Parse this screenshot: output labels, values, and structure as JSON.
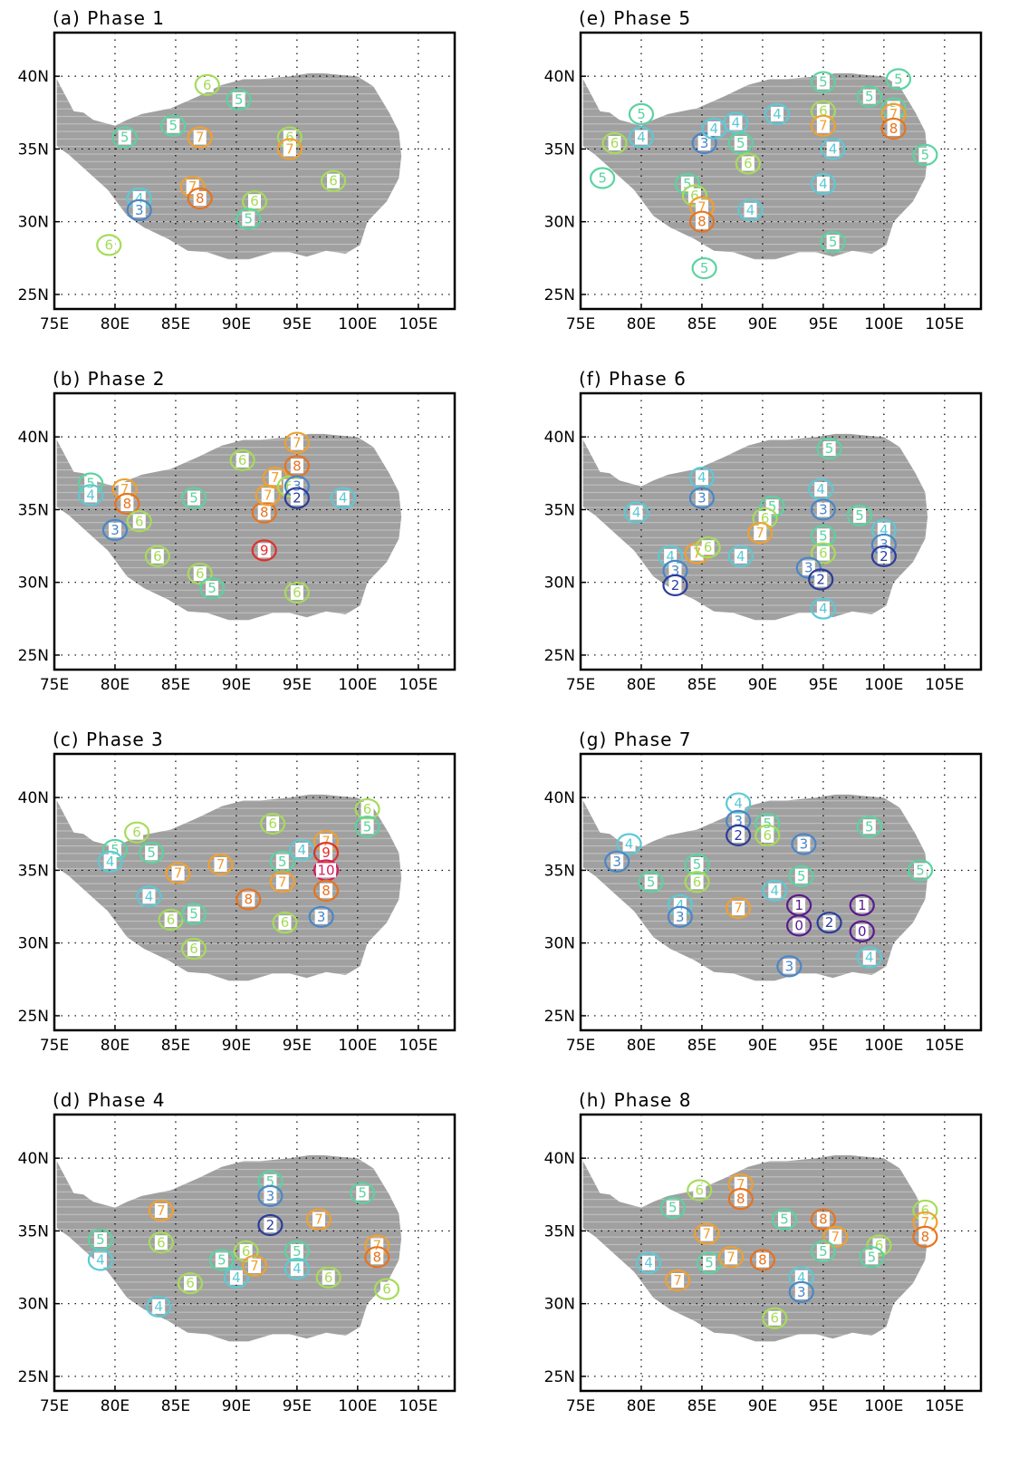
{
  "figure": {
    "x_ticks": [
      "75E",
      "80E",
      "85E",
      "90E",
      "95E",
      "100E",
      "105E"
    ],
    "y_ticks": [
      "25N",
      "30N",
      "35N",
      "40N"
    ],
    "level_colors": {
      "1": "#5b1a8e",
      "2": "#2b3d9b",
      "3": "#4a86c8",
      "4": "#5cc9d6",
      "5": "#5bd3a0",
      "6": "#a6dc5a",
      "7": "#f0a030",
      "8": "#e8731e",
      "9": "#e0302a",
      "10": "#d81b60"
    },
    "panels": [
      {
        "title": "(a) Phase 1",
        "labels": [
          {
            "lon": 80.8,
            "lat": 35.8,
            "level": "5"
          },
          {
            "lon": 84.8,
            "lat": 36.6,
            "level": "5"
          },
          {
            "lon": 87.0,
            "lat": 35.8,
            "level": "7"
          },
          {
            "lon": 87.6,
            "lat": 39.4,
            "level": "6"
          },
          {
            "lon": 90.2,
            "lat": 38.4,
            "level": "5"
          },
          {
            "lon": 94.4,
            "lat": 35.8,
            "level": "6"
          },
          {
            "lon": 94.4,
            "lat": 35.0,
            "level": "7"
          },
          {
            "lon": 82.0,
            "lat": 31.6,
            "level": "4"
          },
          {
            "lon": 82.0,
            "lat": 30.8,
            "level": "3"
          },
          {
            "lon": 86.4,
            "lat": 32.4,
            "level": "7"
          },
          {
            "lon": 87.0,
            "lat": 31.6,
            "level": "8"
          },
          {
            "lon": 91.5,
            "lat": 31.4,
            "level": "6"
          },
          {
            "lon": 91.0,
            "lat": 30.2,
            "level": "5"
          },
          {
            "lon": 98.0,
            "lat": 32.8,
            "level": "6"
          },
          {
            "lon": 79.5,
            "lat": 28.4,
            "level": "6"
          }
        ]
      },
      {
        "title": "(b) Phase 2",
        "labels": [
          {
            "lon": 78.0,
            "lat": 36.8,
            "level": "5"
          },
          {
            "lon": 78.0,
            "lat": 36.0,
            "level": "4"
          },
          {
            "lon": 80.0,
            "lat": 33.6,
            "level": "3"
          },
          {
            "lon": 80.8,
            "lat": 36.4,
            "level": "7"
          },
          {
            "lon": 81.0,
            "lat": 35.4,
            "level": "8"
          },
          {
            "lon": 82.0,
            "lat": 34.2,
            "level": "6"
          },
          {
            "lon": 83.5,
            "lat": 31.8,
            "level": "6"
          },
          {
            "lon": 86.5,
            "lat": 35.8,
            "level": "5"
          },
          {
            "lon": 87.0,
            "lat": 30.6,
            "level": "6"
          },
          {
            "lon": 88.0,
            "lat": 29.6,
            "level": "5"
          },
          {
            "lon": 90.5,
            "lat": 38.4,
            "level": "6"
          },
          {
            "lon": 92.3,
            "lat": 34.8,
            "level": "8"
          },
          {
            "lon": 92.3,
            "lat": 32.2,
            "level": "9"
          },
          {
            "lon": 92.6,
            "lat": 36.0,
            "level": "7"
          },
          {
            "lon": 93.2,
            "lat": 37.2,
            "level": "7"
          },
          {
            "lon": 94.4,
            "lat": 36.6,
            "level": "6"
          },
          {
            "lon": 95.0,
            "lat": 39.6,
            "level": "7"
          },
          {
            "lon": 95.0,
            "lat": 38.0,
            "level": "8"
          },
          {
            "lon": 95.0,
            "lat": 36.6,
            "level": "3"
          },
          {
            "lon": 95.0,
            "lat": 35.8,
            "level": "2"
          },
          {
            "lon": 98.8,
            "lat": 35.8,
            "level": "4"
          },
          {
            "lon": 95.0,
            "lat": 29.3,
            "level": "6"
          }
        ]
      },
      {
        "title": "(c) Phase 3",
        "labels": [
          {
            "lon": 80.0,
            "lat": 36.4,
            "level": "5"
          },
          {
            "lon": 79.6,
            "lat": 35.6,
            "level": "4"
          },
          {
            "lon": 81.8,
            "lat": 37.6,
            "level": "6"
          },
          {
            "lon": 83.0,
            "lat": 36.2,
            "level": "5"
          },
          {
            "lon": 82.8,
            "lat": 33.2,
            "level": "4"
          },
          {
            "lon": 84.6,
            "lat": 31.6,
            "level": "6"
          },
          {
            "lon": 85.2,
            "lat": 34.8,
            "level": "7"
          },
          {
            "lon": 86.5,
            "lat": 32.0,
            "level": "5"
          },
          {
            "lon": 86.5,
            "lat": 29.6,
            "level": "6"
          },
          {
            "lon": 88.7,
            "lat": 35.4,
            "level": "7"
          },
          {
            "lon": 91.0,
            "lat": 33.0,
            "level": "8"
          },
          {
            "lon": 93.0,
            "lat": 38.2,
            "level": "6"
          },
          {
            "lon": 93.8,
            "lat": 35.6,
            "level": "5"
          },
          {
            "lon": 93.8,
            "lat": 34.2,
            "level": "7"
          },
          {
            "lon": 95.4,
            "lat": 36.4,
            "level": "4"
          },
          {
            "lon": 94.0,
            "lat": 31.4,
            "level": "6"
          },
          {
            "lon": 97.4,
            "lat": 37.0,
            "level": "7"
          },
          {
            "lon": 97.4,
            "lat": 36.2,
            "level": "9"
          },
          {
            "lon": 97.4,
            "lat": 35.0,
            "level": "10"
          },
          {
            "lon": 97.4,
            "lat": 33.6,
            "level": "8"
          },
          {
            "lon": 97.0,
            "lat": 31.8,
            "level": "3"
          },
          {
            "lon": 100.8,
            "lat": 39.2,
            "level": "6"
          },
          {
            "lon": 100.8,
            "lat": 38.0,
            "level": "5"
          }
        ]
      },
      {
        "title": "(d) Phase 4",
        "labels": [
          {
            "lon": 78.8,
            "lat": 34.4,
            "level": "5"
          },
          {
            "lon": 78.8,
            "lat": 33.0,
            "level": "4"
          },
          {
            "lon": 83.8,
            "lat": 36.4,
            "level": "7"
          },
          {
            "lon": 83.8,
            "lat": 34.2,
            "level": "6"
          },
          {
            "lon": 83.6,
            "lat": 29.8,
            "level": "4"
          },
          {
            "lon": 86.2,
            "lat": 31.4,
            "level": "6"
          },
          {
            "lon": 88.8,
            "lat": 33.0,
            "level": "5"
          },
          {
            "lon": 90.0,
            "lat": 31.8,
            "level": "4"
          },
          {
            "lon": 90.8,
            "lat": 33.6,
            "level": "6"
          },
          {
            "lon": 91.5,
            "lat": 32.6,
            "level": "7"
          },
          {
            "lon": 92.8,
            "lat": 38.4,
            "level": "5"
          },
          {
            "lon": 92.8,
            "lat": 37.4,
            "level": "3"
          },
          {
            "lon": 92.8,
            "lat": 35.4,
            "level": "2"
          },
          {
            "lon": 95.0,
            "lat": 33.6,
            "level": "5"
          },
          {
            "lon": 95.0,
            "lat": 32.4,
            "level": "4"
          },
          {
            "lon": 96.8,
            "lat": 35.8,
            "level": "7"
          },
          {
            "lon": 97.6,
            "lat": 31.8,
            "level": "6"
          },
          {
            "lon": 100.4,
            "lat": 37.6,
            "level": "5"
          },
          {
            "lon": 101.6,
            "lat": 34.0,
            "level": "7"
          },
          {
            "lon": 101.6,
            "lat": 33.2,
            "level": "8"
          },
          {
            "lon": 102.4,
            "lat": 31.0,
            "level": "6"
          }
        ]
      },
      {
        "title": "(e) Phase 5",
        "labels": [
          {
            "lon": 80.0,
            "lat": 37.4,
            "level": "5"
          },
          {
            "lon": 80.0,
            "lat": 35.8,
            "level": "4"
          },
          {
            "lon": 77.8,
            "lat": 35.4,
            "level": "6"
          },
          {
            "lon": 76.8,
            "lat": 33.0,
            "level": "5"
          },
          {
            "lon": 83.8,
            "lat": 32.6,
            "level": "5"
          },
          {
            "lon": 84.4,
            "lat": 31.8,
            "level": "6"
          },
          {
            "lon": 85.0,
            "lat": 31.0,
            "level": "7"
          },
          {
            "lon": 85.0,
            "lat": 30.0,
            "level": "8"
          },
          {
            "lon": 85.2,
            "lat": 26.8,
            "level": "5"
          },
          {
            "lon": 85.2,
            "lat": 35.4,
            "level": "3"
          },
          {
            "lon": 86.0,
            "lat": 36.4,
            "level": "4"
          },
          {
            "lon": 87.8,
            "lat": 36.8,
            "level": "4"
          },
          {
            "lon": 88.2,
            "lat": 35.4,
            "level": "5"
          },
          {
            "lon": 88.8,
            "lat": 34.0,
            "level": "6"
          },
          {
            "lon": 89.0,
            "lat": 30.8,
            "level": "4"
          },
          {
            "lon": 91.2,
            "lat": 37.4,
            "level": "4"
          },
          {
            "lon": 95.0,
            "lat": 39.6,
            "level": "5"
          },
          {
            "lon": 95.0,
            "lat": 37.6,
            "level": "6"
          },
          {
            "lon": 95.0,
            "lat": 36.6,
            "level": "7"
          },
          {
            "lon": 95.8,
            "lat": 35.0,
            "level": "4"
          },
          {
            "lon": 95.0,
            "lat": 32.6,
            "level": "4"
          },
          {
            "lon": 95.8,
            "lat": 28.6,
            "level": "5"
          },
          {
            "lon": 98.8,
            "lat": 38.6,
            "level": "5"
          },
          {
            "lon": 101.2,
            "lat": 39.8,
            "level": "5"
          },
          {
            "lon": 100.8,
            "lat": 37.8,
            "level": "5"
          },
          {
            "lon": 100.8,
            "lat": 37.4,
            "level": "7"
          },
          {
            "lon": 100.8,
            "lat": 36.4,
            "level": "8"
          },
          {
            "lon": 103.4,
            "lat": 34.6,
            "level": "5"
          }
        ]
      },
      {
        "title": "(f) Phase 6",
        "labels": [
          {
            "lon": 79.6,
            "lat": 34.8,
            "level": "4"
          },
          {
            "lon": 85.0,
            "lat": 37.2,
            "level": "4"
          },
          {
            "lon": 85.0,
            "lat": 35.8,
            "level": "3"
          },
          {
            "lon": 82.4,
            "lat": 31.8,
            "level": "4"
          },
          {
            "lon": 82.8,
            "lat": 30.8,
            "level": "3"
          },
          {
            "lon": 82.8,
            "lat": 29.8,
            "level": "2"
          },
          {
            "lon": 84.6,
            "lat": 32.0,
            "level": "7"
          },
          {
            "lon": 85.5,
            "lat": 32.4,
            "level": "6"
          },
          {
            "lon": 88.2,
            "lat": 31.8,
            "level": "4"
          },
          {
            "lon": 90.8,
            "lat": 35.2,
            "level": "5"
          },
          {
            "lon": 90.2,
            "lat": 34.4,
            "level": "6"
          },
          {
            "lon": 89.8,
            "lat": 33.4,
            "level": "7"
          },
          {
            "lon": 94.8,
            "lat": 36.4,
            "level": "4"
          },
          {
            "lon": 95.0,
            "lat": 35.0,
            "level": "3"
          },
          {
            "lon": 95.0,
            "lat": 33.2,
            "level": "5"
          },
          {
            "lon": 95.0,
            "lat": 32.0,
            "level": "6"
          },
          {
            "lon": 93.8,
            "lat": 31.0,
            "level": "3"
          },
          {
            "lon": 94.8,
            "lat": 30.2,
            "level": "2"
          },
          {
            "lon": 95.0,
            "lat": 28.2,
            "level": "4"
          },
          {
            "lon": 95.5,
            "lat": 39.2,
            "level": "5"
          },
          {
            "lon": 98.0,
            "lat": 34.6,
            "level": "5"
          },
          {
            "lon": 100.0,
            "lat": 33.6,
            "level": "4"
          },
          {
            "lon": 100.0,
            "lat": 32.6,
            "level": "3"
          },
          {
            "lon": 100.0,
            "lat": 31.8,
            "level": "2"
          }
        ]
      },
      {
        "title": "(g) Phase 7",
        "labels": [
          {
            "lon": 79.0,
            "lat": 36.8,
            "level": "4"
          },
          {
            "lon": 78.0,
            "lat": 35.6,
            "level": "3"
          },
          {
            "lon": 80.8,
            "lat": 34.2,
            "level": "5"
          },
          {
            "lon": 84.6,
            "lat": 35.4,
            "level": "5"
          },
          {
            "lon": 84.6,
            "lat": 34.2,
            "level": "6"
          },
          {
            "lon": 83.2,
            "lat": 32.6,
            "level": "4"
          },
          {
            "lon": 83.2,
            "lat": 31.8,
            "level": "3"
          },
          {
            "lon": 88.0,
            "lat": 39.6,
            "level": "4"
          },
          {
            "lon": 88.0,
            "lat": 38.4,
            "level": "3"
          },
          {
            "lon": 88.0,
            "lat": 37.4,
            "level": "2"
          },
          {
            "lon": 90.4,
            "lat": 38.2,
            "level": "5"
          },
          {
            "lon": 90.4,
            "lat": 37.4,
            "level": "6"
          },
          {
            "lon": 88.0,
            "lat": 32.4,
            "level": "7"
          },
          {
            "lon": 91.0,
            "lat": 33.6,
            "level": "4"
          },
          {
            "lon": 93.4,
            "lat": 36.8,
            "level": "3"
          },
          {
            "lon": 93.2,
            "lat": 34.6,
            "level": "5"
          },
          {
            "lon": 93.0,
            "lat": 32.6,
            "level": "1"
          },
          {
            "lon": 93.0,
            "lat": 31.2,
            "level": "0"
          },
          {
            "lon": 95.5,
            "lat": 31.4,
            "level": "2"
          },
          {
            "lon": 98.2,
            "lat": 32.6,
            "level": "1"
          },
          {
            "lon": 98.2,
            "lat": 30.8,
            "level": "0"
          },
          {
            "lon": 98.8,
            "lat": 29.0,
            "level": "4"
          },
          {
            "lon": 92.2,
            "lat": 28.4,
            "level": "3"
          },
          {
            "lon": 98.8,
            "lat": 38.0,
            "level": "5"
          },
          {
            "lon": 103.0,
            "lat": 35.0,
            "level": "5"
          }
        ]
      },
      {
        "title": "(h) Phase 8",
        "labels": [
          {
            "lon": 82.6,
            "lat": 36.6,
            "level": "5"
          },
          {
            "lon": 84.8,
            "lat": 37.8,
            "level": "6"
          },
          {
            "lon": 80.6,
            "lat": 32.8,
            "level": "4"
          },
          {
            "lon": 83.0,
            "lat": 31.6,
            "level": "7"
          },
          {
            "lon": 85.4,
            "lat": 34.8,
            "level": "7"
          },
          {
            "lon": 85.6,
            "lat": 32.8,
            "level": "5"
          },
          {
            "lon": 87.4,
            "lat": 33.2,
            "level": "7"
          },
          {
            "lon": 88.2,
            "lat": 38.2,
            "level": "7"
          },
          {
            "lon": 88.2,
            "lat": 37.2,
            "level": "8"
          },
          {
            "lon": 90.0,
            "lat": 33.0,
            "level": "8"
          },
          {
            "lon": 91.8,
            "lat": 35.8,
            "level": "5"
          },
          {
            "lon": 93.2,
            "lat": 31.8,
            "level": "4"
          },
          {
            "lon": 93.2,
            "lat": 30.8,
            "level": "3"
          },
          {
            "lon": 91.0,
            "lat": 29.0,
            "level": "6"
          },
          {
            "lon": 95.0,
            "lat": 35.8,
            "level": "8"
          },
          {
            "lon": 96.0,
            "lat": 34.6,
            "level": "7"
          },
          {
            "lon": 95.0,
            "lat": 33.6,
            "level": "5"
          },
          {
            "lon": 99.6,
            "lat": 34.0,
            "level": "6"
          },
          {
            "lon": 99.0,
            "lat": 33.2,
            "level": "5"
          },
          {
            "lon": 103.4,
            "lat": 36.4,
            "level": "6"
          },
          {
            "lon": 103.4,
            "lat": 35.6,
            "level": "7"
          },
          {
            "lon": 103.4,
            "lat": 34.6,
            "level": "8"
          }
        ]
      }
    ]
  }
}
